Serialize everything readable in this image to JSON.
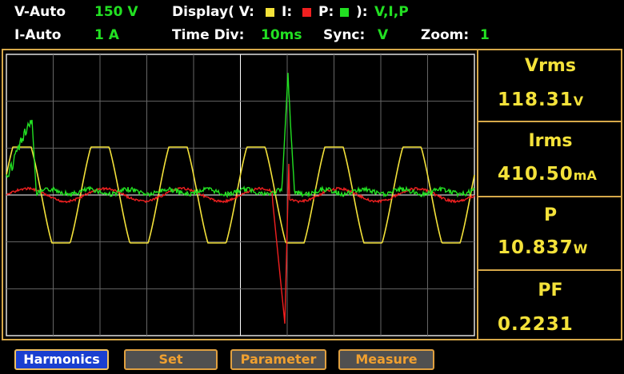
{
  "status": {
    "v_range_label": "V-Auto",
    "v_range": "150 V",
    "display_label": "Display( V:",
    "i_label": "I:",
    "p_label": "P:",
    "display_end": "):",
    "display_value": "V,I,P",
    "i_range_label": "I-Auto",
    "i_range": "1 A",
    "time_div_label": "Time  Div:",
    "time_div": "10ms",
    "sync_label": "Sync:",
    "sync": "V",
    "zoom_label": "Zoom:",
    "zoom": "1"
  },
  "measurements": [
    {
      "label": "Vrms",
      "value": "118.31",
      "unit": "V"
    },
    {
      "label": "Irms",
      "value": "410.50",
      "unit": "mA"
    },
    {
      "label": "P",
      "value": "10.837",
      "unit": "W"
    },
    {
      "label": "PF",
      "value": "0.2231"
    }
  ],
  "buttons": [
    "Harmonics",
    "Set",
    "Parameter",
    "Measure"
  ]
}
